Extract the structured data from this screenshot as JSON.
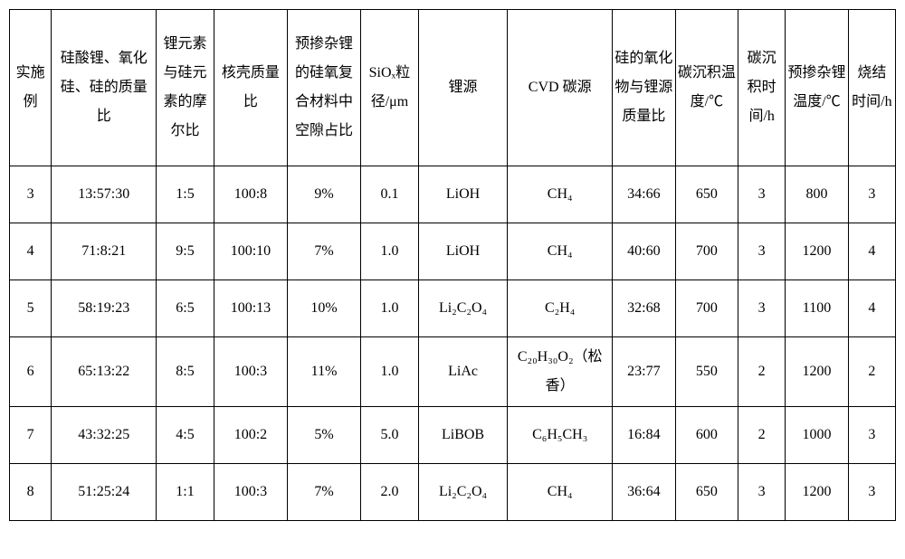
{
  "table": {
    "columns": [
      "实施例",
      "硅酸锂、氧化硅、硅的质量比",
      "锂元素与硅元素的摩尔比",
      "核壳质量比",
      "预掺杂锂的硅氧复合材料中空隙占比",
      "SiOₓ粒径/μm",
      "锂源",
      "CVD 碳源",
      "硅的氧化物与锂源质量比",
      "碳沉积温度/℃",
      "碳沉积时间/h",
      "预掺杂锂温度/℃",
      "烧结时间/h"
    ],
    "col_classes": [
      "col-0",
      "col-1",
      "col-2",
      "col-3",
      "col-4",
      "col-5",
      "col-6",
      "col-7",
      "col-8",
      "col-9",
      "col-10",
      "col-11",
      "col-12"
    ],
    "rows": [
      [
        "3",
        "13:57:30",
        "1:5",
        "100:8",
        "9%",
        "0.1",
        "LiOH",
        "CH₄",
        "34:66",
        "650",
        "3",
        "800",
        "3"
      ],
      [
        "4",
        "71:8:21",
        "9:5",
        "100:10",
        "7%",
        "1.0",
        "LiOH",
        "CH₄",
        "40:60",
        "700",
        "3",
        "1200",
        "4"
      ],
      [
        "5",
        "58:19:23",
        "6:5",
        "100:13",
        "10%",
        "1.0",
        "Li₂C₂O₄",
        "C₂H₄",
        "32:68",
        "700",
        "3",
        "1100",
        "4"
      ],
      [
        "6",
        "65:13:22",
        "8:5",
        "100:3",
        "11%",
        "1.0",
        "LiAc",
        "C₂₀H₃₀O₂（松香）",
        "23:77",
        "550",
        "2",
        "1200",
        "2"
      ],
      [
        "7",
        "43:32:25",
        "4:5",
        "100:2",
        "5%",
        "5.0",
        "LiBOB",
        "C₆H₅CH₃",
        "16:84",
        "600",
        "2",
        "1000",
        "3"
      ],
      [
        "8",
        "51:25:24",
        "1:1",
        "100:3",
        "7%",
        "2.0",
        "Li₂C₂O₄",
        "CH₄",
        "36:64",
        "650",
        "3",
        "1200",
        "3"
      ]
    ],
    "border_color": "#000000",
    "background_color": "#ffffff",
    "header_fontsize": 16,
    "cell_fontsize": 16
  }
}
